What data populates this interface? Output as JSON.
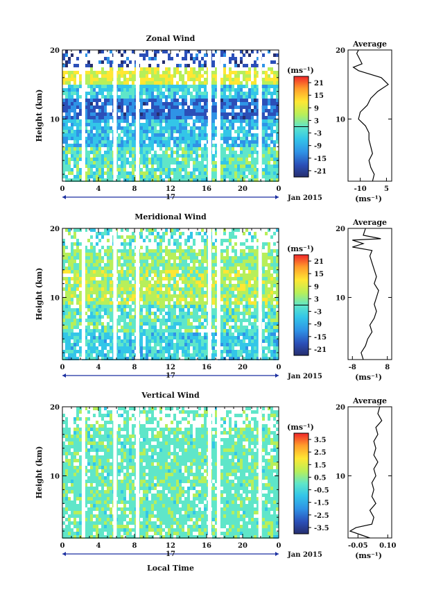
{
  "figure": {
    "x_axis_title": "Local Time",
    "date_label": "Jan 2015",
    "day_label": "17"
  },
  "chart_data": [
    {
      "type": "heatmap",
      "title": "Zonal Wind",
      "ylabel": "Height (km)",
      "xlabel": "Local Time",
      "x_ticks": [
        "0",
        "4",
        "8",
        "12",
        "16",
        "20",
        "0"
      ],
      "y_ticks": [
        "10",
        "20"
      ],
      "xlim": [
        0,
        24
      ],
      "ylim": [
        1,
        20
      ],
      "colorbar": {
        "unit": "(ms⁻¹)",
        "ticks": [
          "21",
          "15",
          "9",
          "3",
          "-3",
          "-9",
          "-15",
          "-21"
        ],
        "range": [
          -24,
          24
        ]
      },
      "profile": {
        "title": "Average",
        "xlabel": "(ms⁻¹)",
        "x_ticks": [
          "-10",
          "5"
        ],
        "xlim": [
          -17,
          8
        ],
        "y_ticks": [
          "10",
          "20"
        ],
        "points": [
          [
            -3,
            1
          ],
          [
            -2,
            2
          ],
          [
            -4,
            3
          ],
          [
            -5,
            4
          ],
          [
            -3,
            5
          ],
          [
            -4,
            6
          ],
          [
            -5,
            7
          ],
          [
            -5,
            8
          ],
          [
            -7,
            9
          ],
          [
            -11,
            10
          ],
          [
            -10,
            11
          ],
          [
            -6,
            12
          ],
          [
            -4,
            13
          ],
          [
            0,
            14
          ],
          [
            6,
            15
          ],
          [
            2,
            16
          ],
          [
            -11,
            17
          ],
          [
            -14,
            17.5
          ],
          [
            -9,
            18
          ],
          [
            -11,
            19
          ],
          [
            -12,
            19.5
          ],
          [
            -11,
            20
          ]
        ]
      },
      "data_gaps_hours": [
        2.3,
        5.8,
        8.3,
        16.3,
        17.3,
        21.9
      ]
    },
    {
      "type": "heatmap",
      "title": "Meridional Wind",
      "ylabel": "Height (km)",
      "xlabel": "Local Time",
      "x_ticks": [
        "0",
        "4",
        "8",
        "12",
        "16",
        "20",
        "0"
      ],
      "y_ticks": [
        "10",
        "20"
      ],
      "xlim": [
        0,
        24
      ],
      "ylim": [
        1,
        20
      ],
      "colorbar": {
        "unit": "(ms⁻¹)",
        "ticks": [
          "21",
          "15",
          "9",
          "3",
          "-3",
          "-9",
          "-15",
          "-21"
        ],
        "range": [
          -24,
          24
        ]
      },
      "profile": {
        "title": "Average",
        "xlabel": "(ms⁻¹)",
        "x_ticks": [
          "-8",
          "8"
        ],
        "xlim": [
          -10,
          10
        ],
        "y_ticks": [
          "10",
          "20"
        ],
        "points": [
          [
            -3,
            1
          ],
          [
            -4,
            2
          ],
          [
            -2,
            3
          ],
          [
            -1,
            4
          ],
          [
            1,
            5
          ],
          [
            0,
            6
          ],
          [
            2,
            7
          ],
          [
            3,
            8
          ],
          [
            2,
            9
          ],
          [
            3,
            10
          ],
          [
            4,
            11
          ],
          [
            2,
            12
          ],
          [
            3,
            13
          ],
          [
            2,
            14
          ],
          [
            1,
            15
          ],
          [
            0,
            16
          ],
          [
            1,
            16.8
          ],
          [
            -8,
            17.3
          ],
          [
            -3,
            17.8
          ],
          [
            -5,
            18
          ],
          [
            -8,
            18.3
          ],
          [
            5,
            18.5
          ],
          [
            -3,
            19
          ],
          [
            -2,
            20
          ]
        ]
      },
      "data_gaps_hours": [
        2.3,
        5.8,
        8.3,
        16.3,
        17.3,
        21.9
      ]
    },
    {
      "type": "heatmap",
      "title": "Vertical Wind",
      "ylabel": "Height (km)",
      "xlabel": "Local Time",
      "x_ticks": [
        "0",
        "4",
        "8",
        "12",
        "16",
        "20",
        "0"
      ],
      "y_ticks": [
        "10",
        "20"
      ],
      "xlim": [
        0,
        24
      ],
      "ylim": [
        1,
        20
      ],
      "colorbar": {
        "unit": "(ms⁻¹)",
        "ticks": [
          "3.5",
          "2.5",
          "1.5",
          "0.5",
          "-0.5",
          "-1.5",
          "-2.5",
          "-3.5"
        ],
        "range": [
          -4,
          4
        ]
      },
      "profile": {
        "title": "Average",
        "xlabel": "(ms⁻¹)",
        "x_ticks": [
          "-0.05",
          "0.10"
        ],
        "xlim": [
          -0.1,
          0.12
        ],
        "y_ticks": [
          "10",
          "20"
        ],
        "points": [
          [
            0.01,
            1
          ],
          [
            -0.04,
            1.5
          ],
          [
            -0.09,
            2
          ],
          [
            -0.06,
            2.5
          ],
          [
            0.02,
            3
          ],
          [
            0.03,
            4
          ],
          [
            0.01,
            5
          ],
          [
            0.04,
            6
          ],
          [
            0.02,
            7
          ],
          [
            0.03,
            8
          ],
          [
            0.02,
            9
          ],
          [
            0.04,
            10
          ],
          [
            0.03,
            11
          ],
          [
            0.05,
            12
          ],
          [
            0.03,
            13
          ],
          [
            0.04,
            14
          ],
          [
            0.03,
            15
          ],
          [
            0.05,
            16
          ],
          [
            0.04,
            17
          ],
          [
            0.07,
            18
          ],
          [
            0.05,
            19
          ],
          [
            0.06,
            20
          ]
        ]
      },
      "data_gaps_hours": [
        2.3,
        5.8,
        8.3,
        16.3,
        17.3,
        21.9
      ]
    }
  ]
}
